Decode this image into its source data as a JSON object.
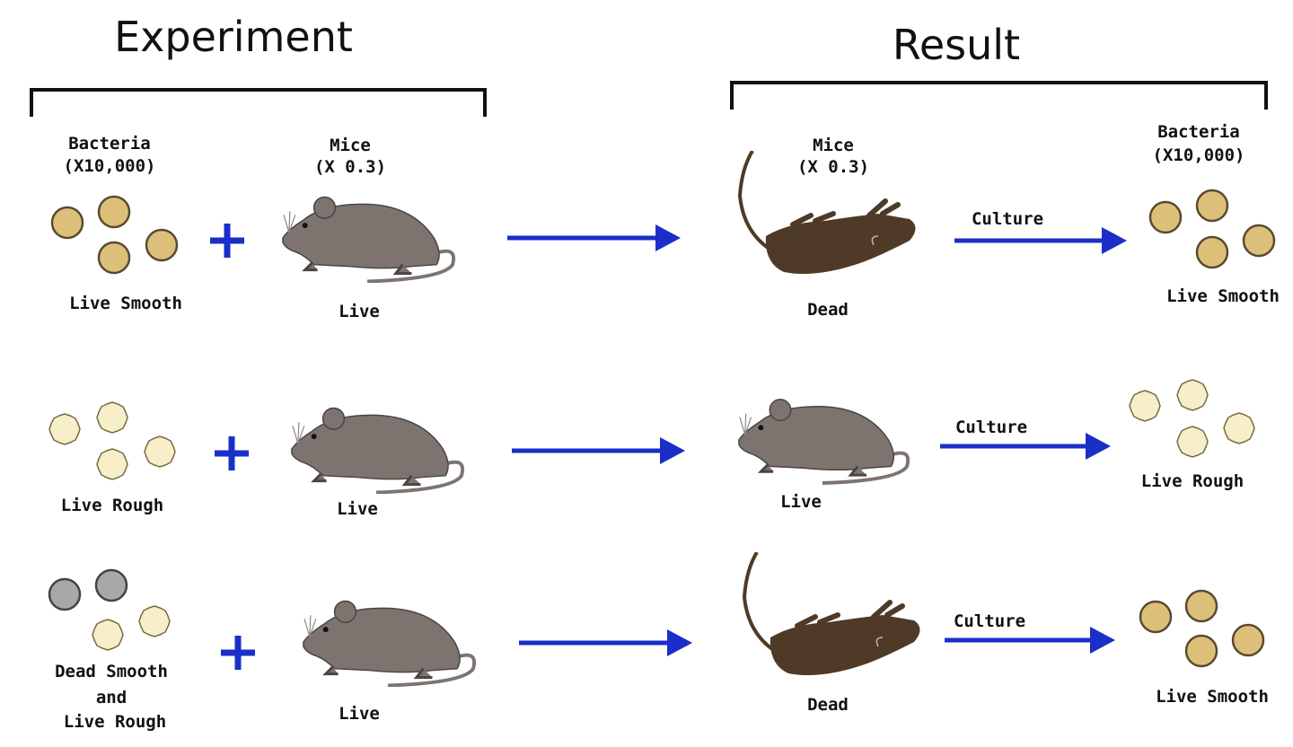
{
  "headers": {
    "experiment": "Experiment",
    "result": "Result"
  },
  "columns": {
    "bacteria": "Bacteria",
    "bacteria_scale": "(X10,000)",
    "mice": "Mice",
    "mice_scale": "(X 0.3)",
    "result_mice": "Mice",
    "result_mice_scale": "(X 0.3)",
    "result_bacteria": "Bacteria",
    "result_bacteria_scale": "(X10,000)"
  },
  "rows": [
    {
      "bacteria": "Live Smooth",
      "mouse_in": "Live",
      "mouse_out": "Dead",
      "culture": "Culture",
      "result": "Live Smooth"
    },
    {
      "bacteria": "Live Rough",
      "mouse_in": "Live",
      "mouse_out": "Live",
      "culture": "Culture",
      "result": "Live Rough"
    },
    {
      "bacteria_lines": [
        "Dead Smooth",
        "and",
        "Live Rough"
      ],
      "mouse_in": "Live",
      "mouse_out": "Dead",
      "culture": "Culture",
      "result": "Live Smooth"
    }
  ],
  "colors": {
    "arrow": "#1a2fc8",
    "smooth_cell": "#dcc07a",
    "rough_cell": "#f6efc9",
    "dead_cell": "#a8a8a8",
    "live_mouse": "#7d7470",
    "dead_mouse": "#4e3a26"
  }
}
